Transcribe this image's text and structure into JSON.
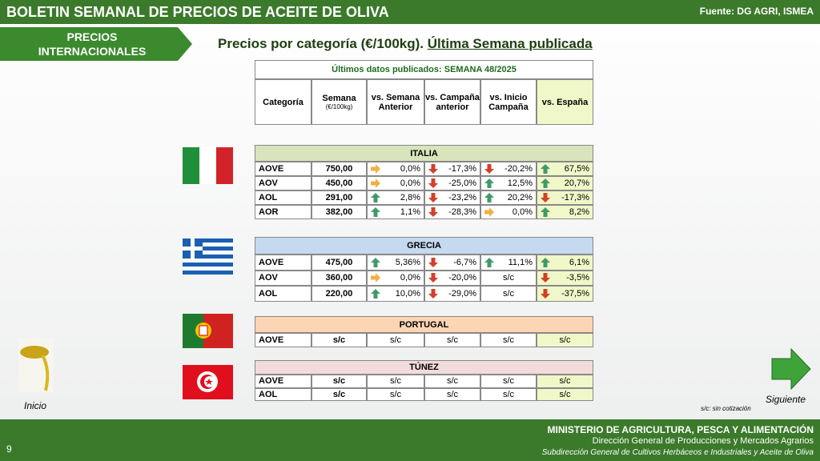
{
  "header": {
    "title": "BOLETIN SEMANAL DE PRECIOS DE ACEITE DE OLIVA",
    "source": "Fuente: DG AGRI, ISMEA"
  },
  "section": "PRECIOS INTERNACIONALES",
  "heading": "Precios por categoría (€/100kg).",
  "heading_link": "Última Semana publicada",
  "table": {
    "caption": "Últimos datos publicados: SEMANA 48/2025",
    "columns": [
      "Categoría",
      "Semana",
      "vs. Semana Anterior",
      "vs. Campaña anterior",
      "vs. Inicio Campaña",
      "vs. España"
    ],
    "unit": "(€/100kg)",
    "groups": [
      {
        "name": "ITALIA",
        "rows": [
          [
            "AOVE",
            "750,00",
            "0,0%",
            "-17,3%",
            "-20,2%",
            "67,5%"
          ],
          [
            "AOV",
            "450,00",
            "0,0%",
            "-25,0%",
            "12,5%",
            "20,7%"
          ],
          [
            "AOL",
            "291,00",
            "2,8%",
            "-23,2%",
            "20,2%",
            "-17,3%"
          ],
          [
            "AOR",
            "382,00",
            "1,1%",
            "-28,3%",
            "0,0%",
            "8,2%"
          ]
        ]
      },
      {
        "name": "GRECIA",
        "rows": [
          [
            "AOVE",
            "475,00",
            "5,36%",
            "-6,7%",
            "11,1%",
            "6,1%"
          ],
          [
            "AOV",
            "360,00",
            "0,0%",
            "-20,0%",
            "s/c",
            "-3,5%"
          ],
          [
            "AOL",
            "220,00",
            "10,0%",
            "-29,0%",
            "s/c",
            "-37,5%"
          ]
        ]
      },
      {
        "name": "PORTUGAL",
        "rows": [
          [
            "AOVE",
            "s/c",
            "s/c",
            "s/c",
            "s/c",
            "s/c"
          ]
        ]
      },
      {
        "name": "TÚNEZ",
        "rows": [
          [
            "AOVE",
            "s/c",
            "s/c",
            "s/c",
            "s/c",
            "s/c"
          ],
          [
            "AOL",
            "s/c",
            "s/c",
            "s/c",
            "s/c",
            "s/c"
          ]
        ]
      }
    ]
  },
  "note": "s/c: sin cotización",
  "nav": {
    "home": "Inicio",
    "next": "Siguiente"
  },
  "footer": {
    "ministry": "MINISTERIO DE AGRICULTURA, PESCA Y ALIMENTACIÓN",
    "line2": "Dirección General de Producciones y Mercados Agrarios",
    "line3": "Subdirección General de Cultivos Herbáceos e Industriales y Aceite de Oliva",
    "page": "9"
  }
}
